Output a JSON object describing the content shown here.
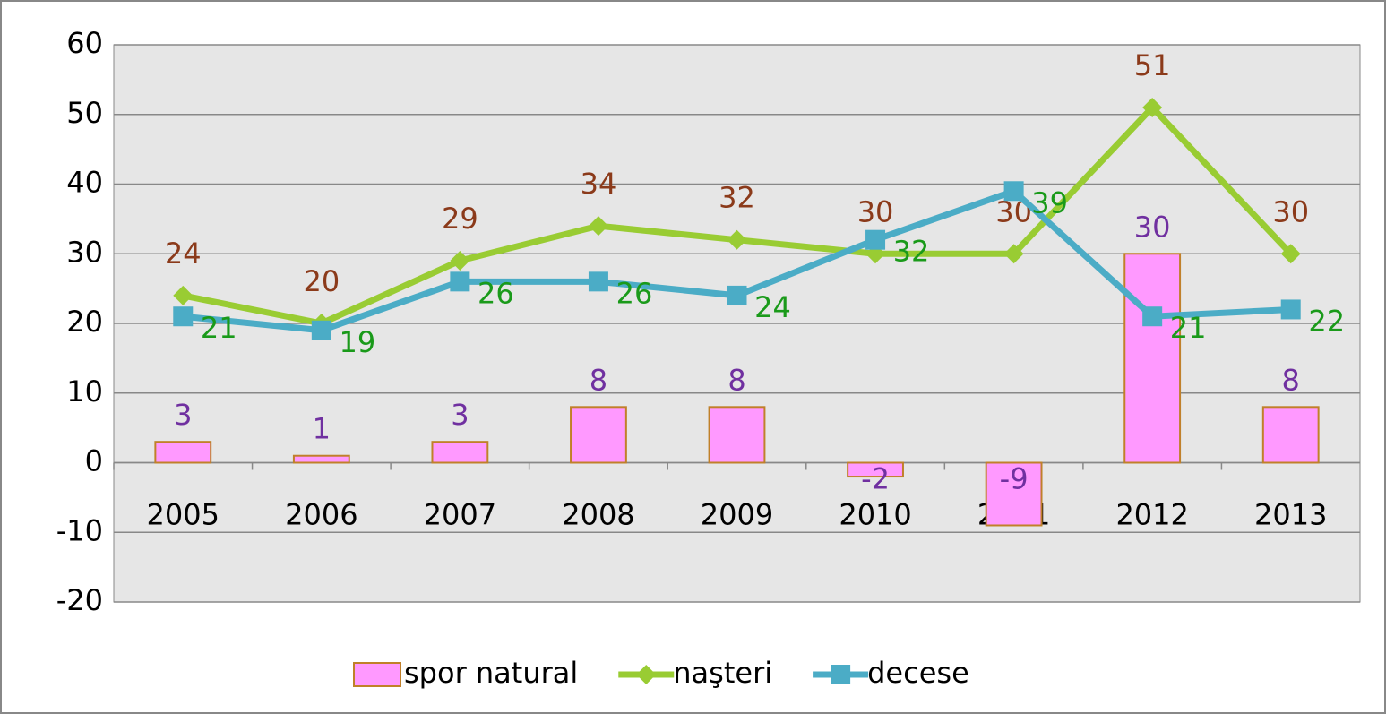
{
  "chart_data": {
    "type": "bar",
    "categories": [
      "2005",
      "2006",
      "2007",
      "2008",
      "2009",
      "2010",
      "2011",
      "2012",
      "2013"
    ],
    "series": [
      {
        "name": "spor natural",
        "type": "bar",
        "color": "#ff99ff",
        "edge_color": "#c0802a",
        "label_color": "#7030a0",
        "values": [
          3,
          1,
          3,
          8,
          8,
          -2,
          -9,
          30,
          8
        ]
      },
      {
        "name": "naşteri",
        "type": "line",
        "marker": "diamond",
        "color": "#99cc33",
        "label_color": "#8b3a1a",
        "values": [
          24,
          20,
          29,
          34,
          32,
          30,
          30,
          51,
          30
        ]
      },
      {
        "name": "decese",
        "type": "line",
        "marker": "square",
        "color": "#4bacc6",
        "label_color": "#1a9a1a",
        "values": [
          21,
          19,
          26,
          26,
          24,
          32,
          39,
          21,
          22
        ]
      }
    ],
    "ylim": [
      -20,
      60
    ],
    "yticks": [
      -20,
      -10,
      0,
      10,
      20,
      30,
      40,
      50,
      60
    ],
    "grid": true,
    "legend": "bottom"
  }
}
